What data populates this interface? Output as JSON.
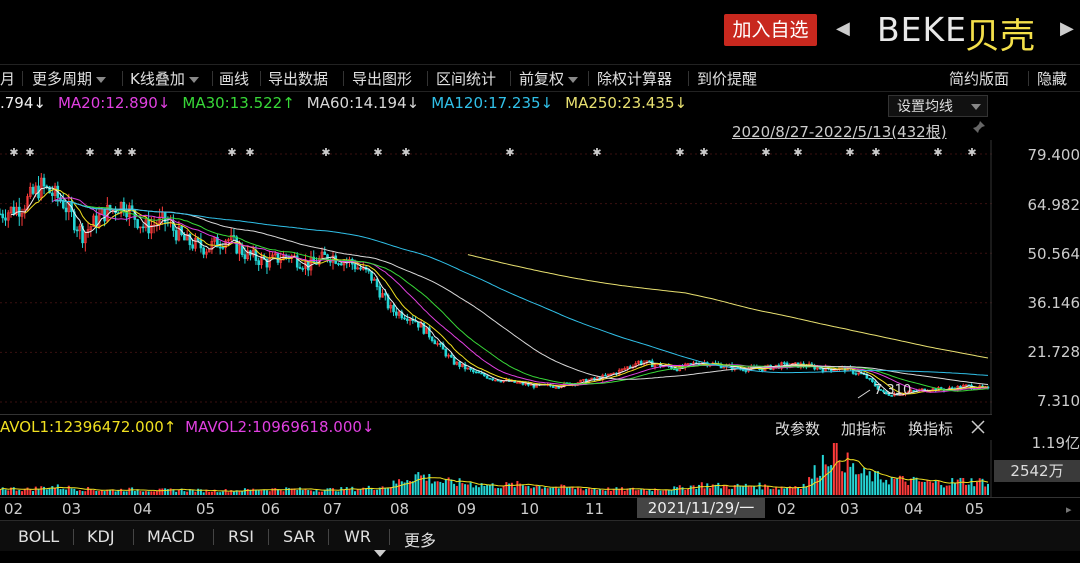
{
  "header": {
    "add_button": "加入自选",
    "ticker": "BEKE",
    "company": "贝壳",
    "prev_arrow": "◀",
    "next_arrow": "▶"
  },
  "toolbar": {
    "items": [
      "月",
      "更多周期",
      "K线叠加",
      "画线",
      "导出数据",
      "导出图形",
      "区间统计",
      "前复权",
      "除权计算器",
      "到价提醒"
    ],
    "right_items": [
      "简约版面",
      "隐藏"
    ]
  },
  "ma_legend": [
    {
      "label": ".794↓",
      "color": "#f0f0f0"
    },
    {
      "label": "MA20:12.890↓",
      "color": "#e040e0"
    },
    {
      "label": "MA30:13.522↑",
      "color": "#38d838"
    },
    {
      "label": "MA60:14.194↓",
      "color": "#d8d8d8"
    },
    {
      "label": "MA120:17.235↓",
      "color": "#30c0e8"
    },
    {
      "label": "MA250:23.435↓",
      "color": "#e8e070"
    }
  ],
  "set_ma_label": "设置均线",
  "date_range": "2020/8/27-2022/5/13(432根)",
  "y_labels": [
    "79.400",
    "64.982",
    "50.564",
    "36.146",
    "21.728",
    "7.310"
  ],
  "min_label": "7.310",
  "volume": {
    "legend": [
      {
        "label": "AVOL1:12396472.000↑",
        "color": "#f0e020"
      },
      {
        "label": "MAVOL2:10969618.000↓",
        "color": "#e040e0"
      }
    ],
    "buttons": [
      "改参数",
      "加指标",
      "换指标"
    ],
    "top_label": "1.19亿",
    "current_label": "2542万"
  },
  "x_labels": [
    "02",
    "03",
    "04",
    "05",
    "06",
    "07",
    "08",
    "09",
    "10",
    "11",
    "02",
    "03",
    "04",
    "05"
  ],
  "cursor_date": "2021/11/29/一",
  "tabs": [
    "BOLL",
    "KDJ",
    "MACD",
    "RSI",
    "SAR",
    "WR",
    "更多"
  ],
  "colors": {
    "up": "#ff3b3b",
    "down": "#25d6d6",
    "ma5": "#f0f0f0",
    "ma10": "#f0e020",
    "ma20": "#e040e0",
    "ma30": "#38d838",
    "ma60": "#d8d8d8",
    "ma120": "#30c0e8",
    "ma250": "#e8e070"
  },
  "chart_data": {
    "type": "line",
    "subtype": "candlestick-with-moving-averages",
    "ticker": "BEKE",
    "range": "2020/8/27-2022/5/13(432根)",
    "ylim": [
      7.31,
      79.4
    ],
    "y_ticks": [
      79.4,
      64.982,
      50.564,
      36.146,
      21.728,
      7.31
    ],
    "x_ticks": [
      "02",
      "03",
      "04",
      "05",
      "06",
      "07",
      "08",
      "09",
      "10",
      "11",
      "02",
      "03",
      "04",
      "05"
    ],
    "price_anchors": [
      62,
      64,
      70,
      66,
      56,
      62,
      65,
      58,
      60,
      54,
      52,
      55,
      50,
      48,
      50,
      47,
      50,
      48,
      44,
      34,
      32,
      26,
      19,
      16,
      14,
      13,
      12,
      12,
      13,
      14,
      16,
      19,
      18,
      17,
      19,
      18,
      17,
      17,
      18,
      18,
      17,
      17,
      15,
      9.5,
      10,
      11,
      11,
      12,
      11
    ],
    "volume_anchors": [
      0.15,
      0.12,
      0.18,
      0.14,
      0.1,
      0.12,
      0.1,
      0.11,
      0.09,
      0.1,
      0.12,
      0.13,
      0.11,
      0.12,
      0.14,
      0.2,
      0.45,
      0.28,
      0.25,
      0.2,
      0.22,
      0.18,
      0.15,
      0.13,
      0.12,
      0.12,
      0.14,
      0.22,
      0.18,
      0.2,
      0.16,
      0.22,
      1.0,
      0.45,
      0.35,
      0.3,
      0.25,
      0.3,
      0.28
    ],
    "series": [
      {
        "name": "MA20",
        "last": 12.89
      },
      {
        "name": "MA30",
        "last": 13.522
      },
      {
        "name": "MA60",
        "last": 14.194
      },
      {
        "name": "MA120",
        "last": 17.235
      },
      {
        "name": "MA250",
        "last": 23.435
      }
    ],
    "annotation": "7.310",
    "volume": {
      "MAVOL1": 12396472.0,
      "MAVOL2": 10969618.0,
      "max_label": "1.19亿",
      "current": "2542万"
    }
  }
}
